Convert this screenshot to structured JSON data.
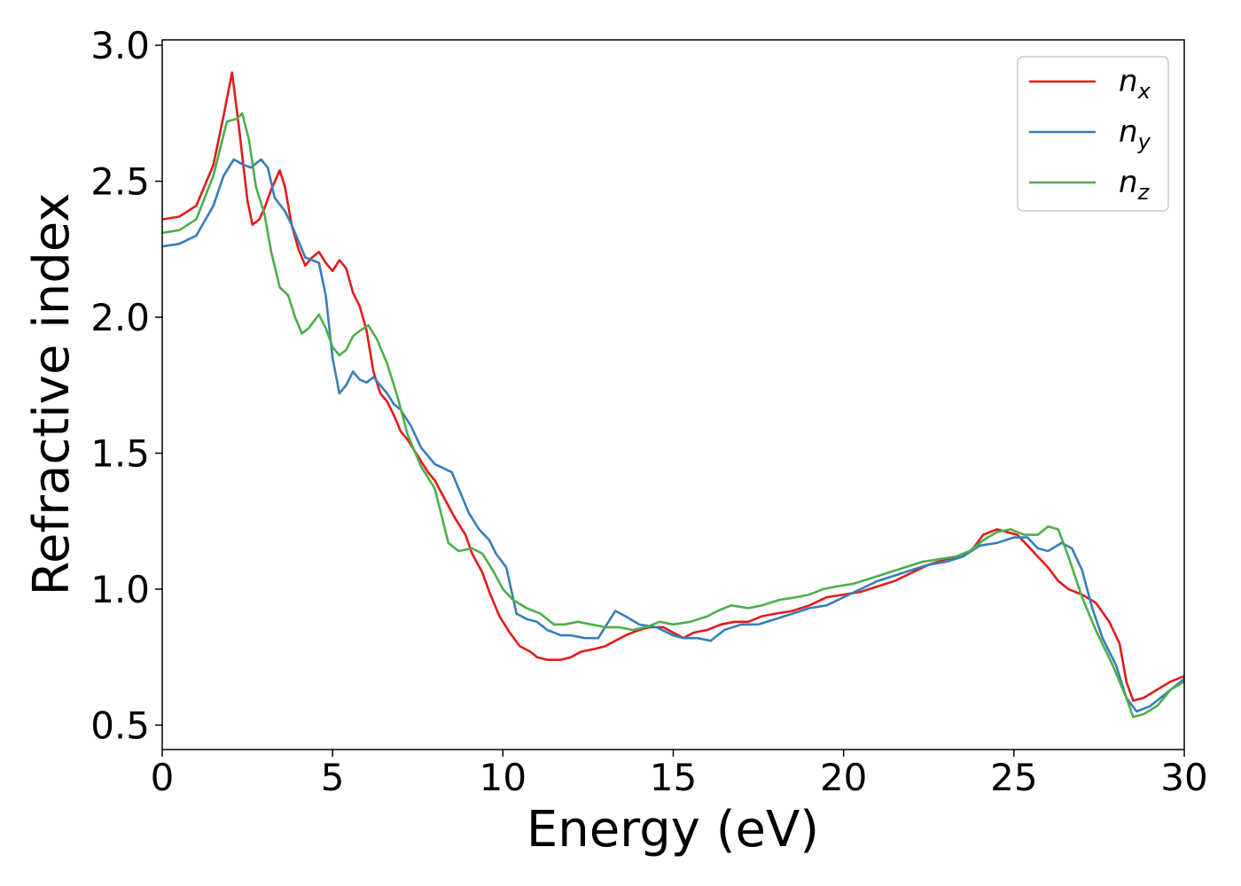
{
  "chart_data": {
    "type": "line",
    "title": "",
    "xlabel": "Energy (eV)",
    "ylabel": "Refractive index",
    "xlim": [
      0,
      30
    ],
    "ylim": [
      0.41,
      3.02
    ],
    "xticks": [
      0,
      5,
      10,
      15,
      20,
      25,
      30
    ],
    "xtick_labels": [
      "0",
      "5",
      "10",
      "15",
      "20",
      "25",
      "30"
    ],
    "yticks": [
      0.5,
      1.0,
      1.5,
      2.0,
      2.5,
      3.0
    ],
    "ytick_labels": [
      "0.5",
      "1.0",
      "1.5",
      "2.0",
      "2.5",
      "3.0"
    ],
    "grid": false,
    "legend_position": "top-right",
    "series": [
      {
        "name": "n_x",
        "label_base": "n",
        "label_sub": "x",
        "color": "#e41a1c",
        "points": [
          [
            0,
            2.36
          ],
          [
            0.5,
            2.37
          ],
          [
            1.0,
            2.41
          ],
          [
            1.5,
            2.56
          ],
          [
            1.8,
            2.74
          ],
          [
            2.05,
            2.9
          ],
          [
            2.25,
            2.7
          ],
          [
            2.5,
            2.43
          ],
          [
            2.65,
            2.34
          ],
          [
            2.85,
            2.36
          ],
          [
            3.0,
            2.4
          ],
          [
            3.2,
            2.47
          ],
          [
            3.45,
            2.54
          ],
          [
            3.6,
            2.48
          ],
          [
            3.8,
            2.34
          ],
          [
            4.0,
            2.25
          ],
          [
            4.2,
            2.19
          ],
          [
            4.4,
            2.22
          ],
          [
            4.6,
            2.24
          ],
          [
            4.8,
            2.2
          ],
          [
            5.0,
            2.17
          ],
          [
            5.2,
            2.21
          ],
          [
            5.4,
            2.18
          ],
          [
            5.6,
            2.09
          ],
          [
            5.8,
            2.04
          ],
          [
            6.0,
            1.95
          ],
          [
            6.2,
            1.8
          ],
          [
            6.4,
            1.72
          ],
          [
            6.6,
            1.69
          ],
          [
            6.8,
            1.64
          ],
          [
            7.0,
            1.58
          ],
          [
            7.2,
            1.55
          ],
          [
            7.5,
            1.49
          ],
          [
            7.8,
            1.43
          ],
          [
            8.0,
            1.4
          ],
          [
            8.3,
            1.33
          ],
          [
            8.6,
            1.26
          ],
          [
            8.9,
            1.2
          ],
          [
            9.1,
            1.13
          ],
          [
            9.4,
            1.06
          ],
          [
            9.6,
            0.99
          ],
          [
            9.9,
            0.9
          ],
          [
            10.2,
            0.84
          ],
          [
            10.5,
            0.79
          ],
          [
            10.8,
            0.77
          ],
          [
            11.0,
            0.75
          ],
          [
            11.3,
            0.74
          ],
          [
            11.7,
            0.74
          ],
          [
            12.0,
            0.75
          ],
          [
            12.3,
            0.77
          ],
          [
            12.7,
            0.78
          ],
          [
            13.0,
            0.79
          ],
          [
            13.3,
            0.81
          ],
          [
            13.6,
            0.83
          ],
          [
            14.0,
            0.85
          ],
          [
            14.3,
            0.86
          ],
          [
            14.7,
            0.86
          ],
          [
            15.0,
            0.84
          ],
          [
            15.3,
            0.82
          ],
          [
            15.6,
            0.84
          ],
          [
            16.0,
            0.85
          ],
          [
            16.4,
            0.87
          ],
          [
            16.8,
            0.88
          ],
          [
            17.2,
            0.88
          ],
          [
            17.6,
            0.9
          ],
          [
            18.0,
            0.91
          ],
          [
            18.5,
            0.92
          ],
          [
            19.0,
            0.94
          ],
          [
            19.5,
            0.97
          ],
          [
            20.0,
            0.98
          ],
          [
            20.5,
            0.99
          ],
          [
            21.0,
            1.01
          ],
          [
            21.5,
            1.03
          ],
          [
            22.0,
            1.06
          ],
          [
            22.5,
            1.09
          ],
          [
            23.0,
            1.11
          ],
          [
            23.5,
            1.12
          ],
          [
            23.8,
            1.15
          ],
          [
            24.1,
            1.2
          ],
          [
            24.5,
            1.22
          ],
          [
            24.8,
            1.21
          ],
          [
            25.1,
            1.2
          ],
          [
            25.4,
            1.16
          ],
          [
            25.7,
            1.12
          ],
          [
            26.0,
            1.08
          ],
          [
            26.3,
            1.03
          ],
          [
            26.6,
            1.0
          ],
          [
            27.0,
            0.98
          ],
          [
            27.4,
            0.95
          ],
          [
            27.8,
            0.88
          ],
          [
            28.1,
            0.8
          ],
          [
            28.3,
            0.66
          ],
          [
            28.5,
            0.59
          ],
          [
            28.8,
            0.6
          ],
          [
            29.2,
            0.63
          ],
          [
            29.6,
            0.66
          ],
          [
            30.0,
            0.68
          ]
        ]
      },
      {
        "name": "n_y",
        "label_base": "n",
        "label_sub": "y",
        "color": "#377eb8",
        "points": [
          [
            0,
            2.26
          ],
          [
            0.5,
            2.27
          ],
          [
            1.0,
            2.3
          ],
          [
            1.5,
            2.41
          ],
          [
            1.8,
            2.52
          ],
          [
            2.1,
            2.58
          ],
          [
            2.4,
            2.56
          ],
          [
            2.6,
            2.55
          ],
          [
            2.9,
            2.58
          ],
          [
            3.1,
            2.55
          ],
          [
            3.3,
            2.44
          ],
          [
            3.6,
            2.39
          ],
          [
            3.8,
            2.34
          ],
          [
            4.0,
            2.28
          ],
          [
            4.2,
            2.22
          ],
          [
            4.4,
            2.21
          ],
          [
            4.6,
            2.2
          ],
          [
            4.8,
            2.08
          ],
          [
            5.0,
            1.85
          ],
          [
            5.2,
            1.72
          ],
          [
            5.4,
            1.75
          ],
          [
            5.6,
            1.8
          ],
          [
            5.8,
            1.77
          ],
          [
            6.0,
            1.76
          ],
          [
            6.2,
            1.78
          ],
          [
            6.4,
            1.75
          ],
          [
            6.6,
            1.72
          ],
          [
            6.8,
            1.68
          ],
          [
            7.0,
            1.66
          ],
          [
            7.3,
            1.6
          ],
          [
            7.6,
            1.52
          ],
          [
            8.0,
            1.46
          ],
          [
            8.5,
            1.43
          ],
          [
            8.7,
            1.37
          ],
          [
            9.0,
            1.28
          ],
          [
            9.3,
            1.22
          ],
          [
            9.6,
            1.18
          ],
          [
            9.8,
            1.13
          ],
          [
            10.1,
            1.08
          ],
          [
            10.4,
            0.91
          ],
          [
            10.7,
            0.89
          ],
          [
            11.0,
            0.88
          ],
          [
            11.3,
            0.85
          ],
          [
            11.7,
            0.83
          ],
          [
            12.0,
            0.83
          ],
          [
            12.4,
            0.82
          ],
          [
            12.8,
            0.82
          ],
          [
            13.0,
            0.86
          ],
          [
            13.3,
            0.92
          ],
          [
            13.6,
            0.9
          ],
          [
            14.0,
            0.87
          ],
          [
            14.5,
            0.86
          ],
          [
            15.0,
            0.83
          ],
          [
            15.3,
            0.82
          ],
          [
            15.7,
            0.82
          ],
          [
            16.1,
            0.81
          ],
          [
            16.5,
            0.85
          ],
          [
            17.0,
            0.87
          ],
          [
            17.5,
            0.87
          ],
          [
            18.0,
            0.89
          ],
          [
            18.5,
            0.91
          ],
          [
            19.0,
            0.93
          ],
          [
            19.5,
            0.94
          ],
          [
            20.0,
            0.97
          ],
          [
            20.5,
            1.0
          ],
          [
            21.0,
            1.03
          ],
          [
            21.5,
            1.05
          ],
          [
            22.0,
            1.07
          ],
          [
            22.5,
            1.09
          ],
          [
            23.0,
            1.1
          ],
          [
            23.5,
            1.12
          ],
          [
            24.0,
            1.16
          ],
          [
            24.5,
            1.17
          ],
          [
            25.0,
            1.19
          ],
          [
            25.4,
            1.19
          ],
          [
            25.7,
            1.15
          ],
          [
            26.0,
            1.14
          ],
          [
            26.4,
            1.17
          ],
          [
            26.7,
            1.15
          ],
          [
            27.0,
            1.07
          ],
          [
            27.3,
            0.93
          ],
          [
            27.6,
            0.82
          ],
          [
            28.0,
            0.72
          ],
          [
            28.3,
            0.6
          ],
          [
            28.6,
            0.55
          ],
          [
            29.0,
            0.57
          ],
          [
            29.4,
            0.61
          ],
          [
            29.7,
            0.64
          ],
          [
            30.0,
            0.67
          ]
        ]
      },
      {
        "name": "n_z",
        "label_base": "n",
        "label_sub": "z",
        "color": "#4daf4a",
        "points": [
          [
            0,
            2.31
          ],
          [
            0.5,
            2.32
          ],
          [
            1.0,
            2.36
          ],
          [
            1.5,
            2.52
          ],
          [
            1.9,
            2.72
          ],
          [
            2.2,
            2.73
          ],
          [
            2.35,
            2.75
          ],
          [
            2.55,
            2.65
          ],
          [
            2.75,
            2.48
          ],
          [
            3.0,
            2.38
          ],
          [
            3.2,
            2.24
          ],
          [
            3.45,
            2.11
          ],
          [
            3.7,
            2.08
          ],
          [
            3.9,
            2.0
          ],
          [
            4.1,
            1.94
          ],
          [
            4.3,
            1.96
          ],
          [
            4.6,
            2.01
          ],
          [
            4.8,
            1.96
          ],
          [
            5.0,
            1.89
          ],
          [
            5.2,
            1.86
          ],
          [
            5.4,
            1.88
          ],
          [
            5.6,
            1.93
          ],
          [
            5.8,
            1.95
          ],
          [
            6.05,
            1.97
          ],
          [
            6.3,
            1.92
          ],
          [
            6.6,
            1.83
          ],
          [
            6.9,
            1.71
          ],
          [
            7.2,
            1.57
          ],
          [
            7.6,
            1.45
          ],
          [
            8.0,
            1.37
          ],
          [
            8.2,
            1.27
          ],
          [
            8.4,
            1.17
          ],
          [
            8.7,
            1.14
          ],
          [
            9.1,
            1.15
          ],
          [
            9.4,
            1.13
          ],
          [
            9.7,
            1.07
          ],
          [
            10.0,
            1.0
          ],
          [
            10.3,
            0.96
          ],
          [
            10.7,
            0.93
          ],
          [
            11.1,
            0.91
          ],
          [
            11.5,
            0.87
          ],
          [
            11.8,
            0.87
          ],
          [
            12.2,
            0.88
          ],
          [
            12.6,
            0.87
          ],
          [
            13.0,
            0.86
          ],
          [
            13.4,
            0.86
          ],
          [
            13.8,
            0.85
          ],
          [
            14.2,
            0.86
          ],
          [
            14.6,
            0.88
          ],
          [
            15.0,
            0.87
          ],
          [
            15.5,
            0.88
          ],
          [
            16.0,
            0.9
          ],
          [
            16.3,
            0.92
          ],
          [
            16.7,
            0.94
          ],
          [
            17.2,
            0.93
          ],
          [
            17.6,
            0.94
          ],
          [
            18.1,
            0.96
          ],
          [
            18.6,
            0.97
          ],
          [
            19.0,
            0.98
          ],
          [
            19.4,
            1.0
          ],
          [
            19.8,
            1.01
          ],
          [
            20.3,
            1.02
          ],
          [
            20.8,
            1.04
          ],
          [
            21.3,
            1.06
          ],
          [
            21.8,
            1.08
          ],
          [
            22.3,
            1.1
          ],
          [
            22.8,
            1.11
          ],
          [
            23.3,
            1.12
          ],
          [
            23.7,
            1.14
          ],
          [
            24.1,
            1.18
          ],
          [
            24.5,
            1.21
          ],
          [
            24.9,
            1.22
          ],
          [
            25.3,
            1.2
          ],
          [
            25.7,
            1.2
          ],
          [
            26.0,
            1.23
          ],
          [
            26.3,
            1.22
          ],
          [
            26.6,
            1.12
          ],
          [
            27.0,
            0.97
          ],
          [
            27.4,
            0.85
          ],
          [
            27.9,
            0.72
          ],
          [
            28.3,
            0.6
          ],
          [
            28.5,
            0.53
          ],
          [
            28.8,
            0.54
          ],
          [
            29.2,
            0.57
          ],
          [
            29.6,
            0.63
          ],
          [
            30.0,
            0.66
          ]
        ]
      }
    ]
  }
}
